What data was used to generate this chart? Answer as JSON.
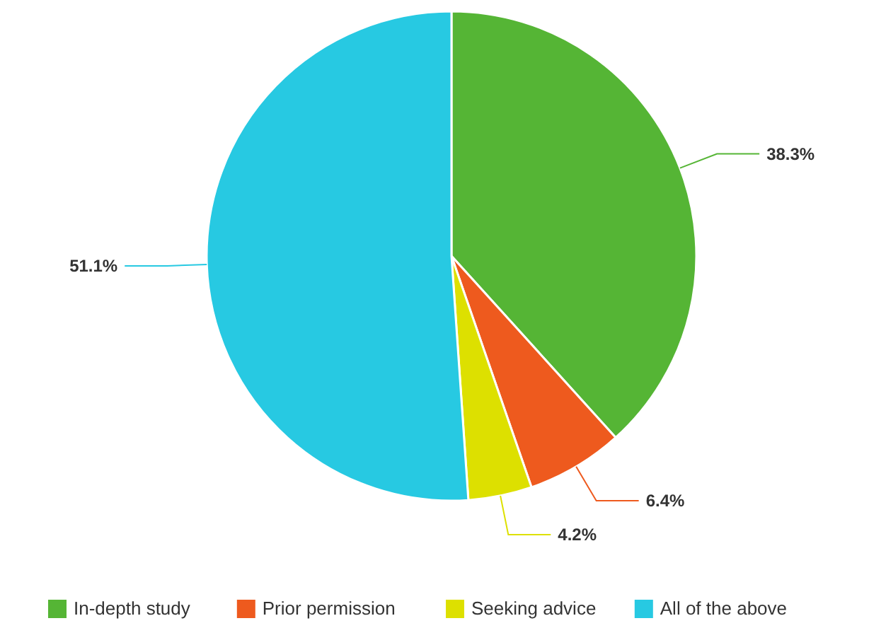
{
  "chart_data": {
    "type": "pie",
    "categories": [
      "In-depth study",
      "Prior permission",
      "Seeking advice",
      "All of the above"
    ],
    "values": [
      38.3,
      6.4,
      4.2,
      51.1
    ],
    "colors": [
      "#55b535",
      "#ee5a1e",
      "#dde000",
      "#27c9e2"
    ],
    "value_labels": [
      "38.3%",
      "6.4%",
      "4.2%",
      "51.1%"
    ],
    "legend": "bottom"
  }
}
